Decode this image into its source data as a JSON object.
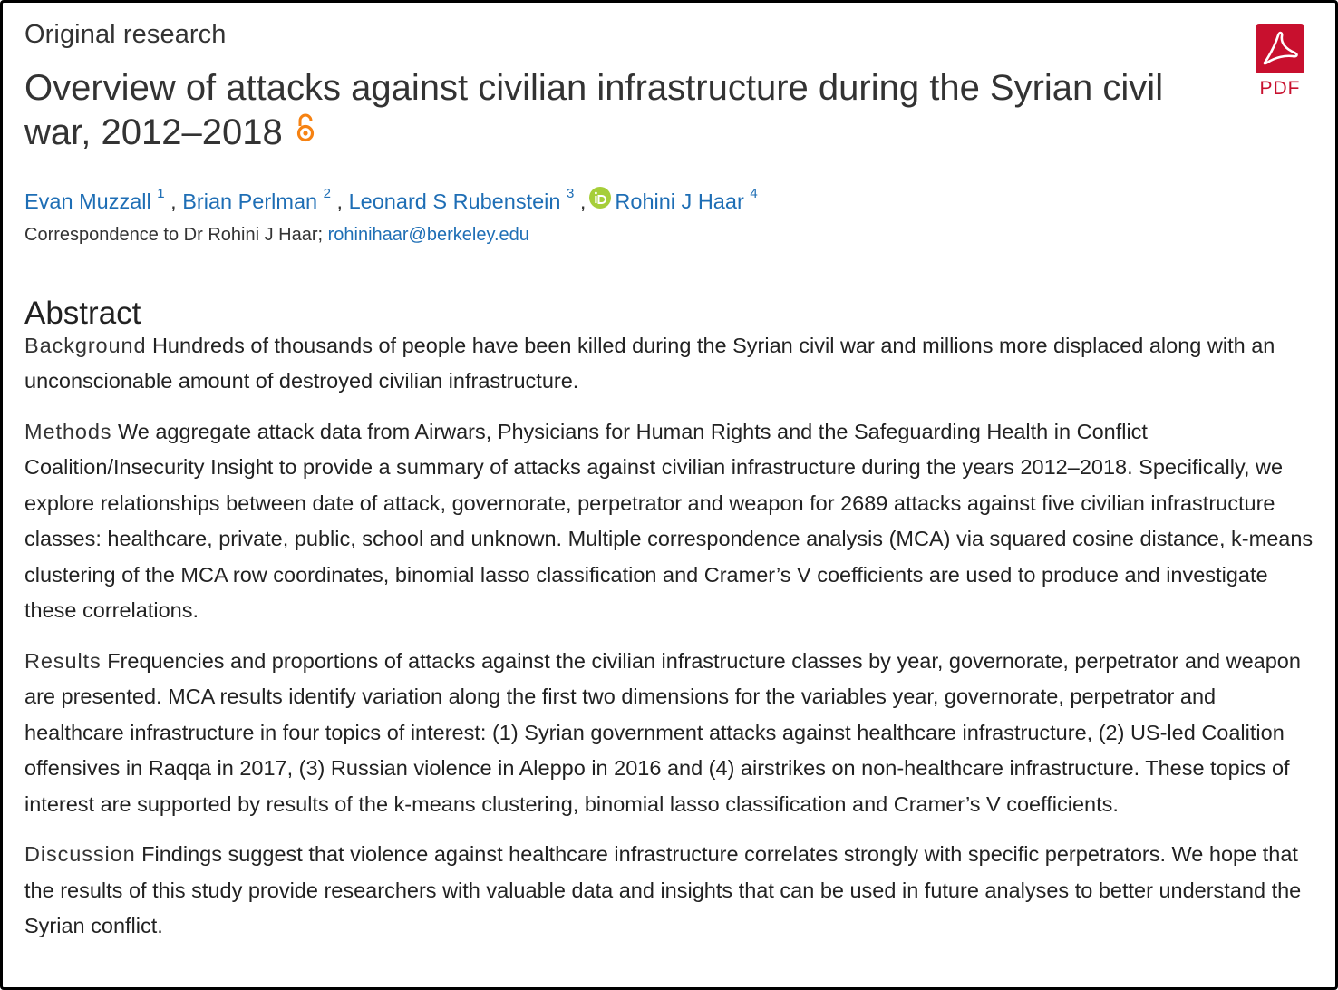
{
  "article": {
    "type": "Original research",
    "title": "Overview of attacks against civilian infrastructure during the Syrian civil war, 2012–2018",
    "open_access_icon": "open-access-icon",
    "pdf_label": "PDF",
    "pdf_icon": "adobe-pdf-icon",
    "brand_color": "#c8102e",
    "link_color": "#1e6eb5",
    "oa_color": "#f68212",
    "orcid_color": "#a6ce39"
  },
  "authors": [
    {
      "name": "Evan Muzzall",
      "affiliation": "1"
    },
    {
      "name": "Brian Perlman",
      "affiliation": "2"
    },
    {
      "name": "Leonard S Rubenstein",
      "affiliation": "3"
    },
    {
      "name": "Rohini J Haar",
      "affiliation": "4",
      "icon": "orcid-icon"
    }
  ],
  "correspondence": {
    "prefix": "Correspondence to Dr Rohini J Haar;",
    "email": "rohinihaar@berkeley.edu"
  },
  "abstract": {
    "heading": "Abstract",
    "sections": [
      {
        "label": "Background",
        "text": "Hundreds of thousands of people have been killed during the Syrian civil war and millions more displaced along with an unconscionable amount of destroyed civilian infrastructure."
      },
      {
        "label": "Methods",
        "text": "We aggregate attack data from Airwars, Physicians for Human Rights and the Safeguarding Health in Conflict Coalition/Insecurity Insight to provide a summary of attacks against civilian infrastructure during the years 2012–2018. Specifically, we explore relationships between date of attack, governorate, perpetrator and weapon for 2689 attacks against five civilian infrastructure classes: healthcare, private, public, school and unknown. Multiple correspondence analysis (MCA) via squared cosine distance, k-means clustering of the MCA row coordinates, binomial lasso classification and Cramer’s V coefficients are used to produce and investigate these correlations."
      },
      {
        "label": "Results",
        "text": "Frequencies and proportions of attacks against the civilian infrastructure classes by year, governorate, perpetrator and weapon are presented. MCA results identify variation along the first two dimensions for the variables year, governorate, perpetrator and healthcare infrastructure in four topics of interest: (1) Syrian government attacks against healthcare infrastructure, (2) US-led Coalition offensives in Raqqa in 2017, (3) Russian violence in Aleppo in 2016 and (4) airstrikes on non-healthcare infrastructure. These topics of interest are supported by results of the k-means clustering, binomial lasso classification and Cramer’s V coefficients."
      },
      {
        "label": "Discussion",
        "text": "Findings suggest that violence against healthcare infrastructure correlates strongly with specific perpetrators. We hope that the results of this study provide researchers with valuable data and insights that can be used in future analyses to better understand the Syrian conflict."
      }
    ]
  }
}
